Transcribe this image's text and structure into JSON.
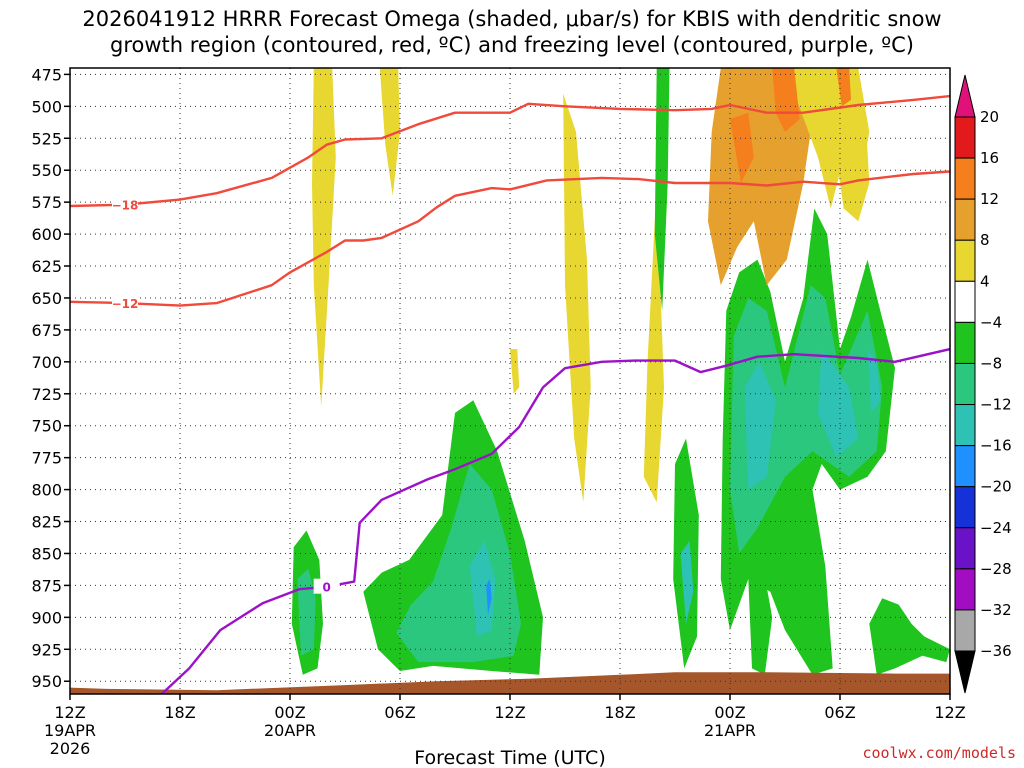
{
  "chart_data": {
    "type": "heatmap",
    "title_line1": "2026041912 HRRR Forecast Omega (shaded, μbar/s) for KBIS with dendritic snow",
    "title_line2": "growth region (contoured, red, ºC) and freezing level (contoured, purple, ºC)",
    "xlabel": "Forecast Time (UTC)",
    "credit": "coolwx.com/models",
    "x_range_hours": [
      0,
      48
    ],
    "y_range_mb": [
      960,
      470
    ],
    "y_ticks": [
      "475",
      "500",
      "525",
      "550",
      "575",
      "600",
      "625",
      "650",
      "675",
      "700",
      "725",
      "750",
      "775",
      "800",
      "825",
      "850",
      "875",
      "900",
      "925",
      "950"
    ],
    "x_ticks": [
      {
        "h": 0,
        "label": "12Z",
        "sub1": "19APR",
        "sub2": "2026"
      },
      {
        "h": 6,
        "label": "18Z",
        "sub1": "",
        "sub2": ""
      },
      {
        "h": 12,
        "label": "00Z",
        "sub1": "20APR",
        "sub2": ""
      },
      {
        "h": 18,
        "label": "06Z",
        "sub1": "",
        "sub2": ""
      },
      {
        "h": 24,
        "label": "12Z",
        "sub1": "",
        "sub2": ""
      },
      {
        "h": 30,
        "label": "18Z",
        "sub1": "",
        "sub2": ""
      },
      {
        "h": 36,
        "label": "00Z",
        "sub1": "21APR",
        "sub2": ""
      },
      {
        "h": 42,
        "label": "06Z",
        "sub1": "",
        "sub2": ""
      },
      {
        "h": 48,
        "label": "12Z",
        "sub1": "",
        "sub2": ""
      }
    ],
    "colorbar": {
      "labels": [
        "20",
        "16",
        "12",
        "8",
        "4",
        "−4",
        "−8",
        "−12",
        "−16",
        "−20",
        "−24",
        "−28",
        "−32",
        "−36"
      ],
      "colors": [
        "#e31a1c",
        "#f57f1c",
        "#e6a02e",
        "#e8d631",
        "#ffffff",
        "#1fc41f",
        "#2bc77f",
        "#2ec2b4",
        "#1e90ff",
        "#1432d8",
        "#6a12c8",
        "#a20dc2",
        "#a8a8a8"
      ],
      "top_color": "#e0127a",
      "bottom_color": "#000000"
    },
    "contours": [
      {
        "name": "-18 C (dendritic top)",
        "color": "#f04a3c",
        "label": "−18",
        "label_at": [
          3,
          577
        ],
        "points": [
          [
            0,
            578
          ],
          [
            3,
            577
          ],
          [
            6,
            573
          ],
          [
            8,
            568
          ],
          [
            11,
            556
          ],
          [
            13,
            540
          ],
          [
            14,
            530
          ],
          [
            15,
            526
          ],
          [
            16,
            525.5
          ],
          [
            17,
            525
          ],
          [
            19,
            514
          ],
          [
            21,
            505
          ],
          [
            24,
            505
          ],
          [
            25,
            498
          ],
          [
            27,
            500
          ],
          [
            30,
            502
          ],
          [
            33,
            503
          ],
          [
            35,
            502
          ],
          [
            36,
            499
          ],
          [
            38,
            505
          ],
          [
            40,
            505
          ],
          [
            43,
            499
          ],
          [
            46,
            495
          ],
          [
            48,
            492
          ]
        ]
      },
      {
        "name": "-12 C (dendritic bottom)",
        "color": "#f04a3c",
        "label": "−12",
        "label_at": [
          3,
          654
        ],
        "points": [
          [
            0,
            653
          ],
          [
            3,
            654
          ],
          [
            6,
            656
          ],
          [
            8,
            654
          ],
          [
            11,
            640
          ],
          [
            12,
            630
          ],
          [
            14,
            614
          ],
          [
            15,
            605
          ],
          [
            16,
            605
          ],
          [
            17,
            603
          ],
          [
            19,
            590
          ],
          [
            20,
            579
          ],
          [
            21,
            570
          ],
          [
            23,
            564
          ],
          [
            24,
            565
          ],
          [
            26,
            558
          ],
          [
            29,
            556
          ],
          [
            31,
            557
          ],
          [
            33,
            560
          ],
          [
            36,
            560
          ],
          [
            38,
            562
          ],
          [
            40,
            559
          ],
          [
            42,
            561
          ],
          [
            43,
            558
          ],
          [
            46,
            553
          ],
          [
            48,
            551
          ]
        ]
      },
      {
        "name": "0 C freezing level",
        "color": "#9b12c8",
        "label": "0",
        "label_at": [
          14,
          876
        ],
        "points": [
          [
            5,
            960
          ],
          [
            6.5,
            940
          ],
          [
            8.2,
            910
          ],
          [
            10.5,
            889
          ],
          [
            12.5,
            878
          ],
          [
            14,
            876
          ],
          [
            15.5,
            872
          ],
          [
            15.8,
            826
          ],
          [
            17,
            808
          ],
          [
            19.5,
            792
          ],
          [
            21,
            784
          ],
          [
            23,
            772
          ],
          [
            24.5,
            751
          ],
          [
            25.8,
            720
          ],
          [
            27,
            705
          ],
          [
            29,
            700
          ],
          [
            30.8,
            699
          ],
          [
            33,
            699
          ],
          [
            34.4,
            708
          ],
          [
            35.8,
            703
          ],
          [
            37.5,
            696
          ],
          [
            39.5,
            694
          ],
          [
            43,
            697
          ],
          [
            45,
            700
          ],
          [
            48,
            690
          ]
        ]
      }
    ],
    "shaded_regions": [
      {
        "fill": "#e8d631",
        "hours": [
          [
            13.4,
            14.3
          ],
          [
            13.6,
            13.8
          ],
          [
            13.7,
            14.2
          ]
        ],
        "mb": [
          [
            470,
            730
          ]
        ]
      },
      {
        "fill": "#e8d631",
        "hours": [
          [
            16.8,
            18.0
          ]
        ],
        "mb": [
          [
            470,
            575
          ]
        ]
      },
      {
        "fill": "#e8d631",
        "hours": [
          [
            26.8,
            28.5
          ]
        ],
        "mb": [
          [
            480,
            810
          ]
        ]
      },
      {
        "fill": "#1fc41f",
        "hours": [
          [
            12.2,
            13.8
          ]
        ],
        "mb": [
          [
            835,
            940
          ]
        ]
      },
      {
        "fill": "#1fc41f",
        "hours": [
          [
            16.0,
            26.0
          ]
        ],
        "mb": [
          [
            730,
            945
          ]
        ]
      },
      {
        "fill": "#1fc41f",
        "hours": [
          [
            31.8,
            34.5
          ]
        ],
        "mb": [
          [
            470,
            935
          ]
        ]
      },
      {
        "fill": "#1fc41f",
        "hours": [
          [
            37.0,
            44.0
          ]
        ],
        "mb": [
          [
            585,
            945
          ]
        ]
      },
      {
        "fill": "#e6a02e",
        "hours": [
          [
            35.6,
            43.5
          ]
        ],
        "mb": [
          [
            470,
            630
          ]
        ]
      }
    ]
  }
}
